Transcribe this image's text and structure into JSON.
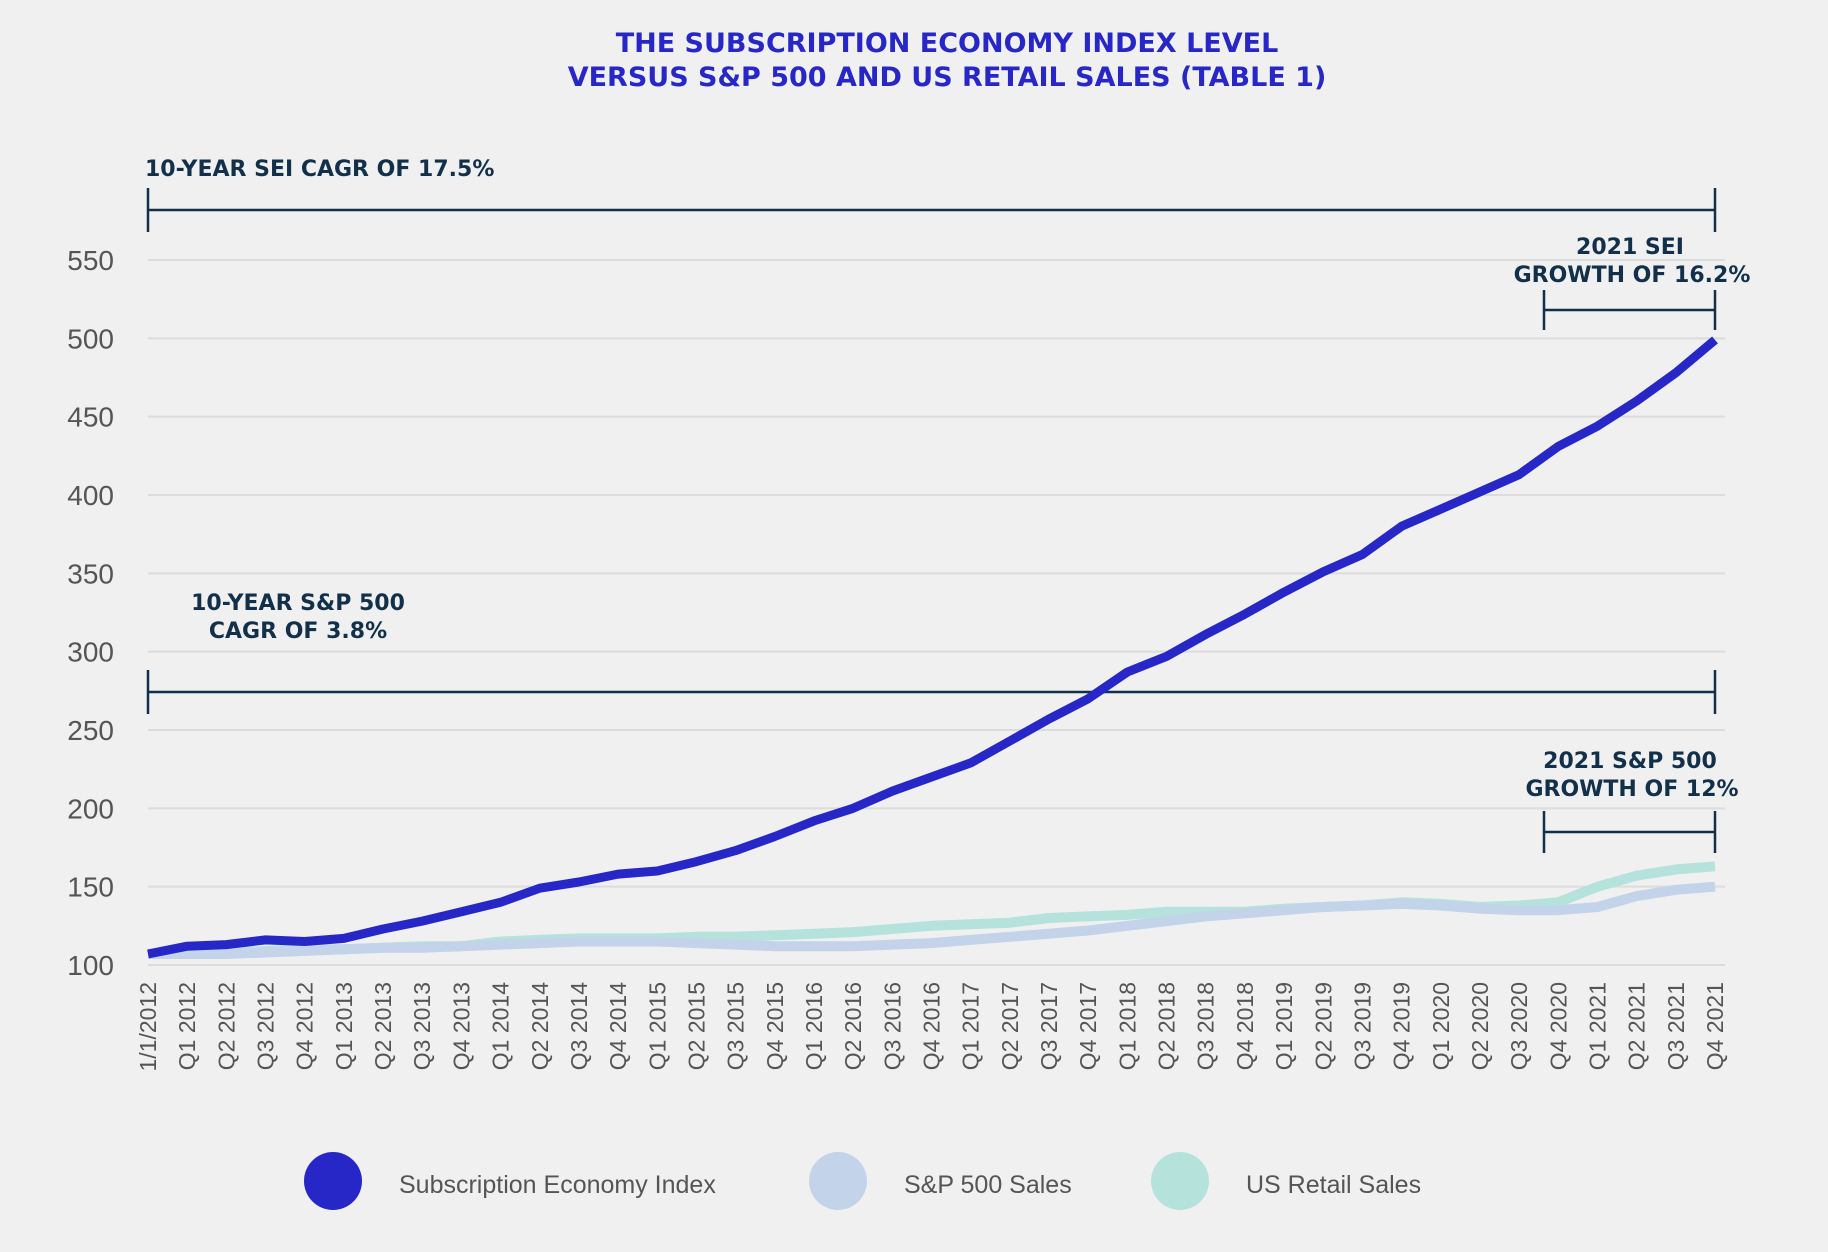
{
  "chart_data": {
    "type": "line",
    "title": [
      "THE SUBSCRIPTION ECONOMY INDEX LEVEL",
      "VERSUS S&P 500 AND US RETAIL SALES (TABLE 1)"
    ],
    "xlabel": "",
    "ylabel": "",
    "ylim": [
      100,
      550
    ],
    "yticks": [
      100,
      150,
      200,
      250,
      300,
      350,
      400,
      450,
      500,
      550
    ],
    "grid": true,
    "legend_position": "bottom",
    "categories": [
      "1/1/2012",
      "Q1 2012",
      "Q2 2012",
      "Q3 2012",
      "Q4 2012",
      "Q1 2013",
      "Q2 2013",
      "Q3 2013",
      "Q4 2013",
      "Q1 2014",
      "Q2 2014",
      "Q3 2014",
      "Q4 2014",
      "Q1 2015",
      "Q2 2015",
      "Q3 2015",
      "Q4 2015",
      "Q1 2016",
      "Q2 2016",
      "Q3 2016",
      "Q4 2016",
      "Q1 2017",
      "Q2 2017",
      "Q3 2017",
      "Q4 2017",
      "Q1 2018",
      "Q2 2018",
      "Q3 2018",
      "Q4 2018",
      "Q1 2019",
      "Q2 2019",
      "Q3 2019",
      "Q4 2019",
      "Q1 2020",
      "Q2 2020",
      "Q3 2020",
      "Q4 2020",
      "Q1 2021",
      "Q2 2021",
      "Q3 2021",
      "Q4 2021"
    ],
    "series": [
      {
        "name": "Subscription Economy Index",
        "color": "#2727c7",
        "values": [
          107,
          112,
          113,
          116,
          115,
          117,
          123,
          128,
          134,
          140,
          149,
          153,
          158,
          160,
          166,
          173,
          182,
          192,
          200,
          211,
          220,
          229,
          243,
          257,
          270,
          287,
          297,
          311,
          324,
          338,
          351,
          362,
          380,
          391,
          402,
          413,
          431,
          444,
          460,
          478,
          499
        ]
      },
      {
        "name": "S&P 500 Sales",
        "color": "#c3d3ea",
        "values": [
          107,
          107,
          107,
          108,
          109,
          110,
          111,
          111,
          112,
          113,
          114,
          115,
          115,
          115,
          114,
          113,
          112,
          112,
          112,
          113,
          114,
          116,
          118,
          120,
          122,
          125,
          128,
          131,
          133,
          135,
          137,
          138,
          139,
          138,
          136,
          135,
          135,
          137,
          144,
          148,
          150
        ]
      },
      {
        "name": "US Retail Sales",
        "color": "#b5e3dc",
        "values": [
          107,
          107,
          108,
          109,
          110,
          110,
          111,
          112,
          112,
          115,
          116,
          117,
          117,
          117,
          118,
          118,
          119,
          120,
          121,
          123,
          125,
          126,
          127,
          130,
          131,
          132,
          134,
          134,
          134,
          136,
          137,
          138,
          140,
          139,
          137,
          138,
          140,
          150,
          157,
          161,
          163
        ]
      }
    ],
    "annotations": [
      {
        "id": "sei-cagr",
        "lines": [
          "10-YEAR SEI CAGR OF 17.5%"
        ]
      },
      {
        "id": "sp-cagr",
        "lines": [
          "10-YEAR S&P 500",
          "CAGR OF 3.8%"
        ]
      },
      {
        "id": "sei-2021",
        "lines": [
          "2021 SEI",
          "GROWTH OF 16.2%"
        ]
      },
      {
        "id": "sp-2021",
        "lines": [
          "2021 S&P 500",
          "GROWTH OF 12%"
        ]
      }
    ],
    "annotation_color": "#12304a"
  }
}
